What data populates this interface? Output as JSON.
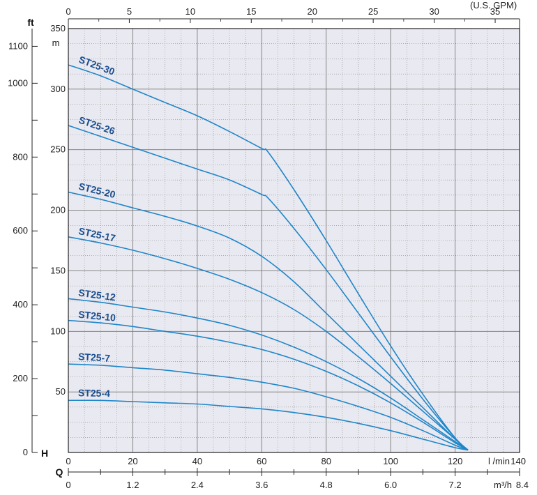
{
  "chart_data": {
    "type": "line",
    "title": "",
    "colors": {
      "curve": "#1f86c8",
      "label": "#1b4f8f",
      "plot_bg": "#e9e9f1",
      "grid": "#888888"
    },
    "grid": true,
    "axes": {
      "x_flow_lmin": {
        "unit": "l /min",
        "range": [
          0,
          140
        ],
        "ticks": [
          0,
          20,
          40,
          60,
          80,
          100,
          120,
          140
        ]
      },
      "x_flow_m3h": {
        "unit": "m³/h",
        "range": [
          0,
          8.4
        ],
        "ticks": [
          "0",
          "1.2",
          "2.4",
          "3.6",
          "4.8",
          "6.0",
          "7.2",
          "8.4"
        ]
      },
      "x_flow_gpm": {
        "unit": "(U.S. GPM)",
        "range": [
          0,
          37
        ],
        "ticks": [
          0,
          5,
          10,
          15,
          20,
          25,
          30,
          35
        ]
      },
      "y_head_m": {
        "unit": "m",
        "range": [
          0,
          350
        ],
        "ticks": [
          0,
          50,
          100,
          150,
          200,
          250,
          300,
          350
        ]
      },
      "y_head_ft": {
        "unit": "ft",
        "range": [
          0,
          1148
        ],
        "ticks": [
          0,
          200,
          400,
          600,
          800,
          1000,
          1100
        ]
      },
      "y_letter": "H",
      "x_letter": "Q"
    },
    "series": [
      {
        "name": "ST25-30",
        "x": [
          0,
          10,
          20,
          30,
          40,
          50,
          60,
          62,
          70,
          80,
          90,
          100,
          110,
          120,
          124
        ],
        "y": [
          320,
          311,
          300,
          289,
          278,
          265,
          251,
          248,
          217,
          175,
          131,
          88,
          48,
          12,
          2
        ]
      },
      {
        "name": "ST25-26",
        "x": [
          0,
          10,
          20,
          30,
          40,
          50,
          60,
          62,
          70,
          80,
          90,
          100,
          110,
          120,
          124
        ],
        "y": [
          270,
          261,
          252,
          243,
          234,
          225,
          213,
          210,
          185,
          151,
          115,
          79,
          44,
          12,
          2
        ]
      },
      {
        "name": "ST25-20",
        "x": [
          0,
          10,
          20,
          30,
          40,
          50,
          60,
          70,
          80,
          90,
          100,
          110,
          120,
          124
        ],
        "y": [
          215,
          209,
          202,
          195,
          187,
          177,
          162,
          141,
          115,
          89,
          63,
          37,
          11,
          2
        ]
      },
      {
        "name": "ST25-17",
        "x": [
          0,
          10,
          20,
          30,
          40,
          50,
          60,
          70,
          80,
          90,
          100,
          110,
          120,
          124
        ],
        "y": [
          178,
          173,
          167,
          160,
          152,
          143,
          132,
          118,
          100,
          79,
          57,
          34,
          11,
          2
        ]
      },
      {
        "name": "ST25-12",
        "x": [
          0,
          10,
          20,
          30,
          40,
          50,
          60,
          70,
          80,
          90,
          100,
          110,
          120,
          124
        ],
        "y": [
          127,
          124,
          120,
          116,
          111,
          105,
          97,
          87,
          75,
          61,
          45,
          27,
          9,
          2
        ]
      },
      {
        "name": "ST25-10",
        "x": [
          0,
          10,
          20,
          30,
          40,
          50,
          60,
          70,
          80,
          90,
          100,
          110,
          120,
          124
        ],
        "y": [
          109,
          107,
          104,
          100,
          96,
          91,
          85,
          77,
          67,
          55,
          41,
          25,
          8,
          2
        ]
      },
      {
        "name": "ST25-7",
        "x": [
          0,
          10,
          20,
          30,
          40,
          50,
          60,
          70,
          80,
          90,
          100,
          110,
          120,
          124
        ],
        "y": [
          73,
          72,
          70,
          68,
          65,
          62,
          58,
          53,
          46,
          38,
          29,
          18,
          6,
          2
        ]
      },
      {
        "name": "ST25-4",
        "x": [
          0,
          10,
          20,
          30,
          40,
          50,
          60,
          70,
          80,
          90,
          100,
          110,
          120,
          124
        ],
        "y": [
          43,
          43,
          42,
          41,
          40,
          38,
          36,
          33,
          29,
          24,
          18,
          11,
          4,
          2
        ]
      }
    ]
  }
}
